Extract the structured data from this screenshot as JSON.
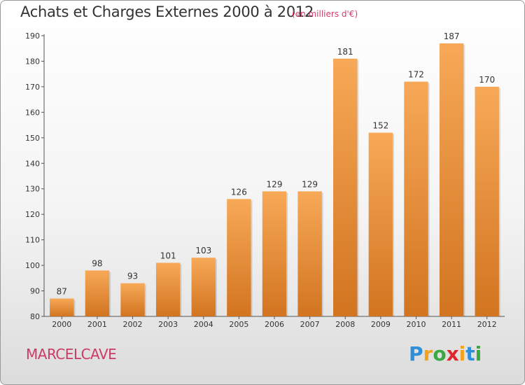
{
  "chart_data": {
    "type": "bar",
    "title": "Achats et Charges Externes 2000 à 2012",
    "subtitle": "(en milliers d'€)",
    "categories": [
      "2000",
      "2001",
      "2002",
      "2003",
      "2004",
      "2005",
      "2006",
      "2007",
      "2008",
      "2009",
      "2010",
      "2011",
      "2012"
    ],
    "values": [
      87,
      98,
      93,
      101,
      103,
      126,
      129,
      129,
      181,
      152,
      172,
      187,
      170
    ],
    "ylim": [
      80,
      190
    ],
    "yticks": [
      80,
      90,
      100,
      110,
      120,
      130,
      140,
      150,
      160,
      170,
      180,
      190
    ],
    "grid": false,
    "bar_color_top": "#f7a957",
    "bar_color_bottom": "#d27420"
  },
  "location_label": "MARCELCAVE",
  "logo": {
    "text": "Proxiti",
    "colors": [
      "#2e8fd8",
      "#f2a21b",
      "#3aa843",
      "#e0262d",
      "#f2a21b",
      "#2e8fd8",
      "#3aa843"
    ]
  }
}
